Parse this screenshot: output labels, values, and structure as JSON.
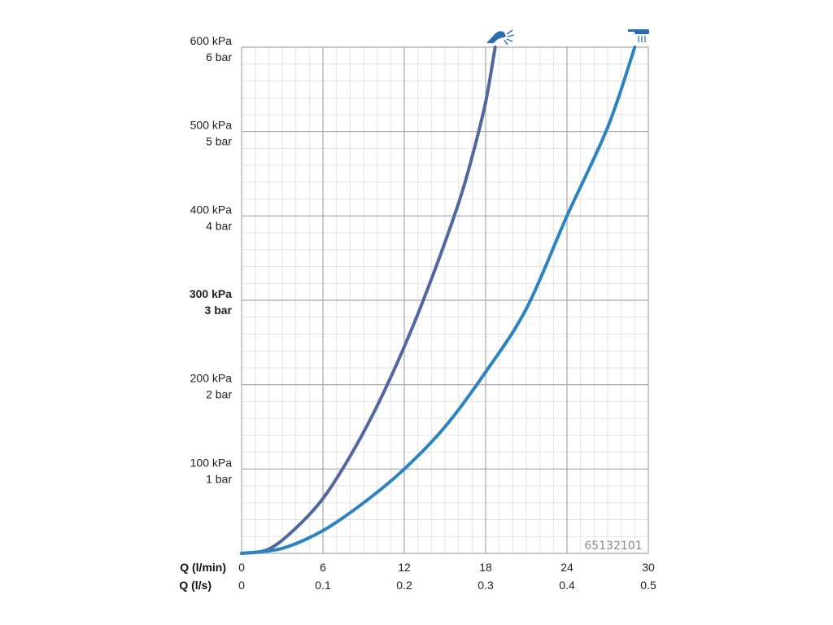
{
  "chart_data": {
    "type": "line",
    "code": "65132101",
    "x_axis_primary": {
      "title": "Q (l/min)",
      "range": [
        0,
        30
      ],
      "ticks": [
        0,
        6,
        12,
        18,
        24,
        30
      ],
      "tick_labels": [
        "0",
        "6",
        "12",
        "18",
        "24",
        "30"
      ]
    },
    "x_axis_secondary": {
      "title": "Q (l/s)",
      "tick_labels": [
        "0",
        "0.1",
        "0.2",
        "0.3",
        "0.4",
        "0.5"
      ]
    },
    "y_axis": {
      "range": [
        0,
        600
      ],
      "ticks": [
        {
          "value": 600,
          "kpa": "600 kPa",
          "bar": "6 bar",
          "bold": false
        },
        {
          "value": 500,
          "kpa": "500 kPa",
          "bar": "5 bar",
          "bold": false
        },
        {
          "value": 400,
          "kpa": "400 kPa",
          "bar": "4 bar",
          "bold": false
        },
        {
          "value": 300,
          "kpa": "300 kPa",
          "bar": "3 bar",
          "bold": true
        },
        {
          "value": 200,
          "kpa": "200 kPa",
          "bar": "2 bar",
          "bold": false
        },
        {
          "value": 100,
          "kpa": "100 kPa",
          "bar": "1 bar",
          "bold": false
        }
      ]
    },
    "grid": true,
    "series": [
      {
        "icon": "hand-shower-icon",
        "color": "#51679f",
        "points": [
          [
            0,
            0
          ],
          [
            2,
            5
          ],
          [
            4,
            30
          ],
          [
            6,
            65
          ],
          [
            8,
            115
          ],
          [
            10,
            175
          ],
          [
            12,
            245
          ],
          [
            14,
            325
          ],
          [
            16,
            415
          ],
          [
            17,
            470
          ],
          [
            18,
            535
          ],
          [
            18.7,
            600
          ]
        ]
      },
      {
        "icon": "overhead-shower-icon",
        "color": "#2b83c2",
        "points": [
          [
            0,
            0
          ],
          [
            3,
            6
          ],
          [
            6,
            27
          ],
          [
            9,
            60
          ],
          [
            12,
            100
          ],
          [
            15,
            150
          ],
          [
            18,
            215
          ],
          [
            21,
            290
          ],
          [
            24,
            400
          ],
          [
            27,
            505
          ],
          [
            29,
            600
          ]
        ]
      }
    ]
  }
}
